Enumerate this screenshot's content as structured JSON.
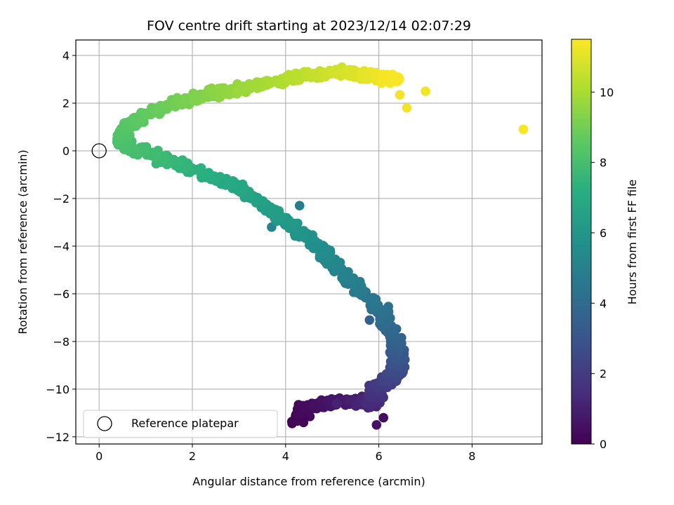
{
  "chart_data": {
    "type": "scatter",
    "title": "FOV centre drift starting at 2023/12/14 02:07:29",
    "xlabel": "Angular distance from reference (arcmin)",
    "ylabel": "Rotation from reference (arcmin)",
    "xlim": [
      -0.5,
      9.5
    ],
    "ylim": [
      -12.3,
      4.65
    ],
    "xticks": [
      0,
      2,
      4,
      6,
      8
    ],
    "yticks": [
      -12,
      -10,
      -8,
      -6,
      -4,
      -2,
      0,
      2,
      4
    ],
    "grid": true,
    "colorbar": {
      "label": "Hours from first FF file",
      "range": [
        0,
        11.5
      ],
      "ticks": [
        0,
        2,
        4,
        6,
        8,
        10
      ],
      "colormap": "viridis"
    },
    "legend": {
      "placement": "lower-left",
      "entries": [
        "Reference platepar"
      ]
    },
    "reference_point": {
      "x": 0,
      "y": 0
    },
    "path_keypoints": [
      {
        "t": 0.0,
        "x": 4.25,
        "y": -11.3
      },
      {
        "t": 0.3,
        "x": 4.4,
        "y": -10.75
      },
      {
        "t": 0.8,
        "x": 5.3,
        "y": -10.5
      },
      {
        "t": 1.3,
        "x": 5.9,
        "y": -10.6
      },
      {
        "t": 1.8,
        "x": 5.95,
        "y": -9.9
      },
      {
        "t": 2.3,
        "x": 6.3,
        "y": -9.5
      },
      {
        "t": 3.0,
        "x": 6.45,
        "y": -8.7
      },
      {
        "t": 3.6,
        "x": 6.35,
        "y": -7.9
      },
      {
        "t": 4.3,
        "x": 6.0,
        "y": -6.6
      },
      {
        "t": 5.0,
        "x": 5.3,
        "y": -5.3
      },
      {
        "t": 5.6,
        "x": 4.7,
        "y": -4.0
      },
      {
        "t": 6.2,
        "x": 3.9,
        "y": -2.8
      },
      {
        "t": 6.8,
        "x": 3.0,
        "y": -1.5
      },
      {
        "t": 7.3,
        "x": 2.0,
        "y": -0.8
      },
      {
        "t": 7.8,
        "x": 1.2,
        "y": -0.2
      },
      {
        "t": 8.1,
        "x": 0.5,
        "y": 0.3
      },
      {
        "t": 8.4,
        "x": 0.6,
        "y": 1.1
      },
      {
        "t": 8.8,
        "x": 1.3,
        "y": 1.8
      },
      {
        "t": 9.3,
        "x": 2.3,
        "y": 2.3
      },
      {
        "t": 9.8,
        "x": 3.3,
        "y": 2.7
      },
      {
        "t": 10.3,
        "x": 4.4,
        "y": 3.2
      },
      {
        "t": 10.8,
        "x": 5.3,
        "y": 3.3
      },
      {
        "t": 11.2,
        "x": 6.0,
        "y": 3.1
      },
      {
        "t": 11.4,
        "x": 6.4,
        "y": 3.0
      }
    ],
    "outliers": [
      {
        "t": 4.8,
        "x": 4.3,
        "y": -2.3
      },
      {
        "t": 5.2,
        "x": 3.7,
        "y": -3.2
      },
      {
        "t": 3.5,
        "x": 5.8,
        "y": -7.1
      },
      {
        "t": 0.4,
        "x": 6.1,
        "y": -11.2
      },
      {
        "t": 0.5,
        "x": 5.95,
        "y": -11.5
      },
      {
        "t": 1.1,
        "x": 5.1,
        "y": -10.6
      },
      {
        "t": 11.3,
        "x": 6.6,
        "y": 1.8
      },
      {
        "t": 11.3,
        "x": 6.45,
        "y": 2.35
      },
      {
        "t": 11.3,
        "x": 7.0,
        "y": 2.5
      },
      {
        "t": 11.4,
        "x": 9.1,
        "y": 0.9
      }
    ]
  }
}
